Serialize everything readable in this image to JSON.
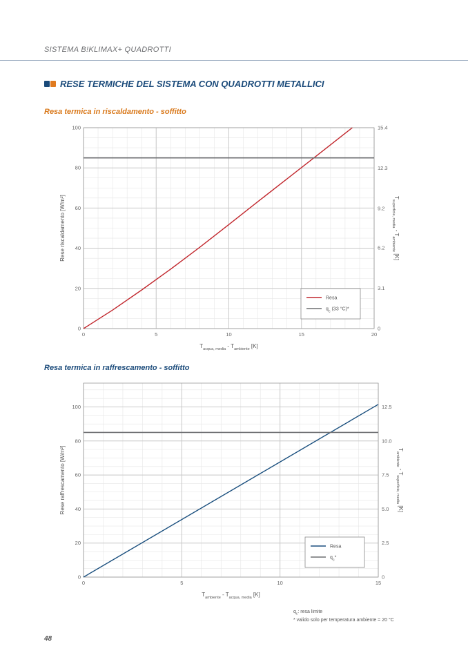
{
  "header": {
    "title": "SISTEMA B!KLIMAX+ QUADROTTI"
  },
  "section": {
    "title": "RESE TERMICHE DEL SISTEMA CON QUADROTTI METALLICI"
  },
  "colors": {
    "brand_blue": "#1a4a7a",
    "brand_orange": "#e07a1f",
    "heating_line": "#c1272d",
    "cooling_line": "#1a4f7e",
    "limit_line": "#6d6e71"
  },
  "chart_data": [
    {
      "type": "line",
      "title": "Resa termica in riscaldamento - soffitto",
      "xlabel": "T_acqua, media - T_ambiente [K]",
      "xlabel_parts": {
        "main1": "T",
        "sub1": "acqua, media",
        "mid": " - T",
        "sub2": "ambiente",
        "tail": " [K]"
      },
      "ylabel": "Rese riscaldamento [W/m²]",
      "y2label": "T_superficie, media - T_ambiente [K]",
      "y2label_parts": {
        "main1": "T",
        "sub1": "superficie, media",
        "mid": " - T",
        "sub2": "ambiente",
        "tail": " [K]"
      },
      "xlim": [
        0,
        20
      ],
      "ylim": [
        0,
        100
      ],
      "xticks": [
        "0",
        "5",
        "10",
        "15",
        "20"
      ],
      "yticks": [
        "0",
        "20",
        "40",
        "60",
        "80",
        "100"
      ],
      "y2ticks": [
        "0",
        "3.1",
        "6.2",
        "9.2",
        "12.3",
        "15.4"
      ],
      "grid": true,
      "legend": "bottom-right",
      "series": [
        {
          "name": "Resa",
          "color": "#c1272d",
          "x": [
            0,
            2,
            4,
            6,
            8,
            10,
            12,
            14,
            16,
            18,
            18.5
          ],
          "y": [
            0,
            9.2,
            19.2,
            29.6,
            40.5,
            51.8,
            63.2,
            74.5,
            85.8,
            97.2,
            100
          ]
        },
        {
          "name": "q_c (33 °C)*",
          "color": "#6d6e71",
          "x": [
            0,
            20
          ],
          "y": [
            85,
            85
          ]
        }
      ],
      "legend_labels": [
        {
          "main": "Resa"
        },
        {
          "main": "q",
          "sub": "c",
          "tail": " (33 °C)*"
        }
      ]
    },
    {
      "type": "line",
      "title": "Resa termica in raffrescamento - soffitto",
      "xlabel": "T_ambiente - T_acqua, media [K]",
      "xlabel_parts": {
        "main1": "T",
        "sub1": "ambiente",
        "mid": " - T",
        "sub2": "acqua, media",
        "tail": " [K]"
      },
      "ylabel": "Rese raffrescamento [W/m²]",
      "y2label": "T_ambiente - T_superficie, media [K]",
      "y2label_parts": {
        "main1": "T",
        "sub1": "ambiente",
        "mid": " - T",
        "sub2": "superficie, media",
        "tail": " [K]"
      },
      "xlim": [
        0,
        15
      ],
      "ylim": [
        0,
        114
      ],
      "xticks": [
        "0",
        "5",
        "10",
        "15"
      ],
      "yticks": [
        "0",
        "20",
        "40",
        "60",
        "80",
        "100"
      ],
      "y2ticks": [
        "0",
        "2.5",
        "5.0",
        "7.5",
        "10.0",
        "12.5"
      ],
      "grid": true,
      "legend": "bottom-right",
      "series": [
        {
          "name": "Resa",
          "color": "#1a4f7e",
          "x": [
            0,
            15
          ],
          "y": [
            0,
            101.5
          ]
        },
        {
          "name": "q_c*",
          "color": "#6d6e71",
          "x": [
            0,
            15
          ],
          "y": [
            85,
            85
          ]
        }
      ],
      "legend_labels": [
        {
          "main": "Resa"
        },
        {
          "main": "q",
          "sub": "c",
          "tail": "*"
        }
      ]
    }
  ],
  "footnote": {
    "line1": "qc: resa limite",
    "line1_parts": {
      "main": "q",
      "sub": "c",
      "tail": ": resa limite"
    },
    "line2": "* valido solo per temperatura ambiente = 20 °C"
  },
  "page_number": "48"
}
